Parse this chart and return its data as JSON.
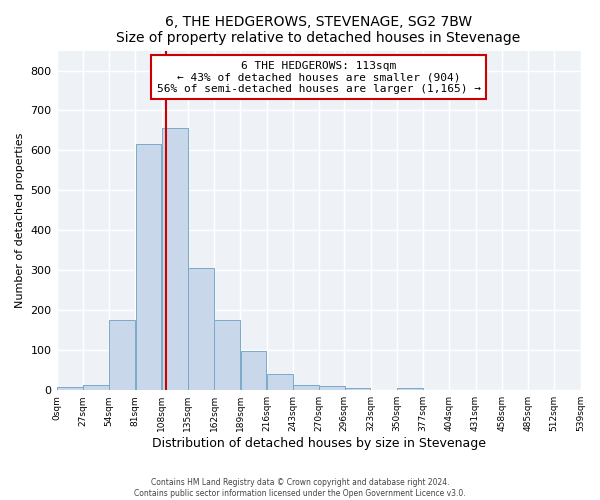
{
  "title": "6, THE HEDGEROWS, STEVENAGE, SG2 7BW",
  "subtitle": "Size of property relative to detached houses in Stevenage",
  "xlabel": "Distribution of detached houses by size in Stevenage",
  "ylabel": "Number of detached properties",
  "bar_color": "#c8d8ea",
  "bar_edge_color": "#7aaac8",
  "background_color": "#eef2f7",
  "grid_color": "#ffffff",
  "bin_edges": [
    0,
    27,
    54,
    81,
    108,
    135,
    162,
    189,
    216,
    243,
    270,
    296,
    323,
    350,
    377,
    404,
    431,
    458,
    485,
    512,
    539
  ],
  "bar_heights": [
    8,
    13,
    175,
    617,
    655,
    305,
    175,
    98,
    40,
    14,
    10,
    5,
    0,
    6,
    0,
    0,
    0,
    0,
    0,
    0
  ],
  "tick_labels": [
    "0sqm",
    "27sqm",
    "54sqm",
    "81sqm",
    "108sqm",
    "135sqm",
    "162sqm",
    "189sqm",
    "216sqm",
    "243sqm",
    "270sqm",
    "296sqm",
    "323sqm",
    "350sqm",
    "377sqm",
    "404sqm",
    "431sqm",
    "458sqm",
    "485sqm",
    "512sqm",
    "539sqm"
  ],
  "property_size": 113,
  "vline_color": "#cc0000",
  "annotation_box_edge_color": "#cc0000",
  "annotation_title": "6 THE HEDGEROWS: 113sqm",
  "annotation_line1": "← 43% of detached houses are smaller (904)",
  "annotation_line2": "56% of semi-detached houses are larger (1,165) →",
  "ylim": [
    0,
    850
  ],
  "yticks": [
    0,
    100,
    200,
    300,
    400,
    500,
    600,
    700,
    800
  ],
  "footer1": "Contains HM Land Registry data © Crown copyright and database right 2024.",
  "footer2": "Contains public sector information licensed under the Open Government Licence v3.0."
}
